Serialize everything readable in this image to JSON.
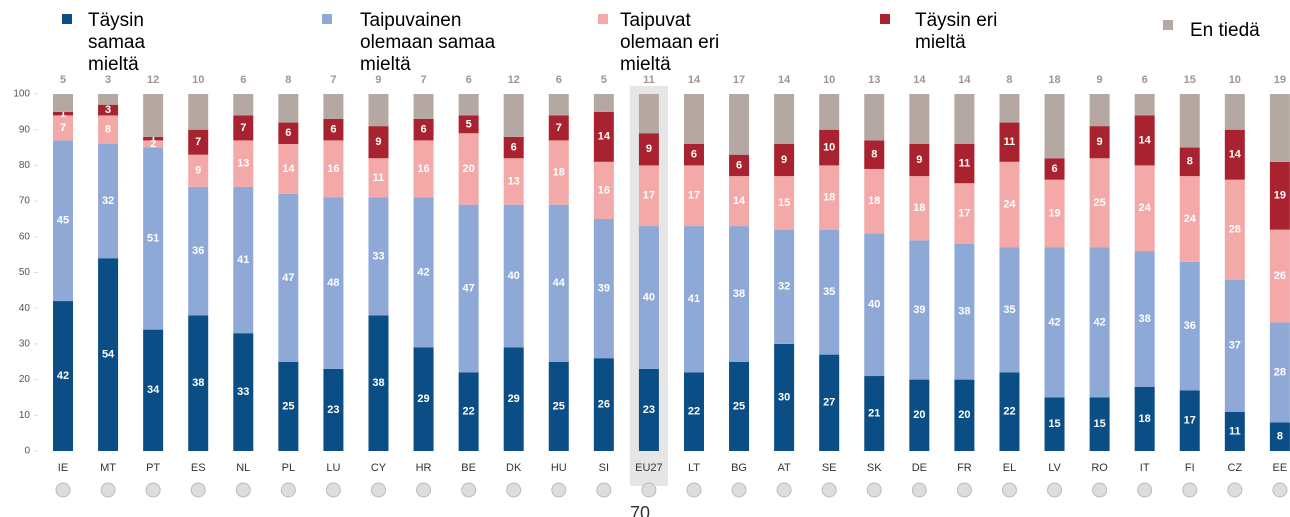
{
  "chart_data": {
    "type": "stacked_bar",
    "categories": [
      "IE",
      "MT",
      "PT",
      "ES",
      "NL",
      "PL",
      "LU",
      "CY",
      "HR",
      "BE",
      "DK",
      "HU",
      "SI",
      "EU27",
      "LT",
      "BG",
      "AT",
      "SE",
      "SK",
      "DE",
      "FR",
      "EL",
      "LV",
      "RO",
      "IT",
      "FI",
      "CZ",
      "EE"
    ],
    "highlight": "EU27",
    "series": [
      {
        "name": "Täysin samaa mieltä",
        "color": "#0b4d85",
        "values": [
          42,
          54,
          34,
          38,
          33,
          25,
          23,
          38,
          29,
          22,
          29,
          25,
          26,
          23,
          22,
          25,
          30,
          27,
          21,
          20,
          20,
          22,
          15,
          15,
          18,
          17,
          11,
          8
        ]
      },
      {
        "name": "Taipuvainen olemaan samaa mieltä",
        "color": "#8fa9d6",
        "values": [
          45,
          32,
          51,
          36,
          41,
          47,
          48,
          33,
          42,
          47,
          40,
          44,
          39,
          40,
          41,
          38,
          32,
          35,
          40,
          39,
          38,
          35,
          42,
          42,
          38,
          36,
          37,
          28
        ]
      },
      {
        "name": "Taipuvat olemaan eri mieltä",
        "color": "#f4a9a9",
        "values": [
          7,
          8,
          2,
          9,
          13,
          14,
          16,
          11,
          16,
          20,
          13,
          18,
          16,
          17,
          17,
          14,
          15,
          18,
          18,
          18,
          17,
          24,
          19,
          25,
          24,
          24,
          28,
          26
        ]
      },
      {
        "name": "Täysin eri mieltä",
        "color": "#a8232f",
        "values": [
          1,
          3,
          1,
          7,
          7,
          6,
          6,
          9,
          6,
          5,
          6,
          7,
          14,
          9,
          6,
          6,
          9,
          10,
          8,
          9,
          11,
          11,
          6,
          9,
          14,
          8,
          14,
          19
        ]
      },
      {
        "name": "En tiedä",
        "color": "#b5a8a3",
        "values": [
          5,
          3,
          12,
          10,
          6,
          8,
          7,
          9,
          7,
          6,
          12,
          6,
          5,
          11,
          14,
          17,
          14,
          10,
          13,
          14,
          14,
          8,
          18,
          9,
          6,
          15,
          10,
          19
        ]
      }
    ],
    "ylim": [
      0,
      100
    ],
    "yticks": [
      0,
      10,
      20,
      30,
      40,
      50,
      60,
      70,
      80,
      90,
      100
    ]
  },
  "page_number": "70"
}
